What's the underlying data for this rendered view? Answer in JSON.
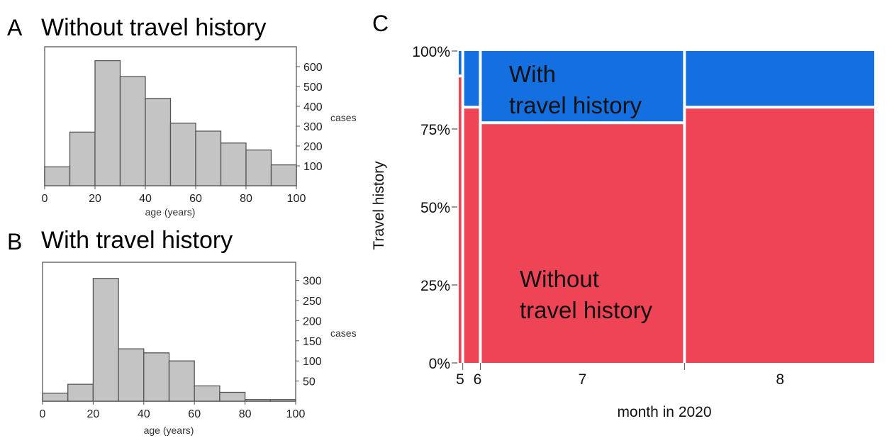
{
  "panels": {
    "a": {
      "letter": "A",
      "title": "Without travel history"
    },
    "b": {
      "letter": "B",
      "title": "With travel history"
    },
    "c": {
      "letter": "C"
    }
  },
  "chart_data": [
    {
      "type": "bar",
      "panel": "A",
      "title": "Without travel history",
      "xlabel": "age (years)",
      "ylabel": "cases",
      "bin_edges": [
        0,
        10,
        20,
        30,
        40,
        50,
        60,
        70,
        80,
        90,
        100
      ],
      "values": [
        95,
        270,
        630,
        550,
        440,
        315,
        275,
        215,
        180,
        105
      ],
      "xlim": [
        0,
        100
      ],
      "ylim": [
        0,
        700
      ],
      "xticks": [
        0,
        20,
        40,
        60,
        80,
        100
      ],
      "yticks": [
        100,
        200,
        300,
        400,
        500,
        600
      ],
      "grid": false
    },
    {
      "type": "bar",
      "panel": "B",
      "title": "With travel history",
      "xlabel": "age (years)",
      "ylabel": "cases",
      "bin_edges": [
        0,
        10,
        20,
        30,
        40,
        50,
        60,
        70,
        80,
        90,
        100
      ],
      "values": [
        20,
        42,
        305,
        130,
        120,
        100,
        38,
        22,
        4,
        4
      ],
      "xlim": [
        0,
        100
      ],
      "ylim": [
        0,
        345
      ],
      "xticks": [
        0,
        20,
        40,
        60,
        80,
        100
      ],
      "yticks": [
        50,
        100,
        150,
        200,
        250,
        300
      ],
      "grid": false
    },
    {
      "type": "mosaic",
      "panel": "C",
      "xlabel": "month in 2020",
      "ylabel": "Travel history",
      "categories": [
        "5",
        "6",
        "7",
        "8"
      ],
      "category_shares": [
        0.013,
        0.042,
        0.488,
        0.457
      ],
      "series": [
        {
          "name": "Without\ntravel history",
          "color": "#ef4356",
          "fractions": [
            0.92,
            0.82,
            0.77,
            0.82
          ]
        },
        {
          "name": "With\ntravel history",
          "color": "#1470e0",
          "fractions": [
            0.08,
            0.18,
            0.23,
            0.18
          ]
        }
      ],
      "ylim": [
        0,
        1
      ],
      "yticks": [
        "0%",
        "25%",
        "50%",
        "75%",
        "100%"
      ],
      "grid": false
    }
  ]
}
